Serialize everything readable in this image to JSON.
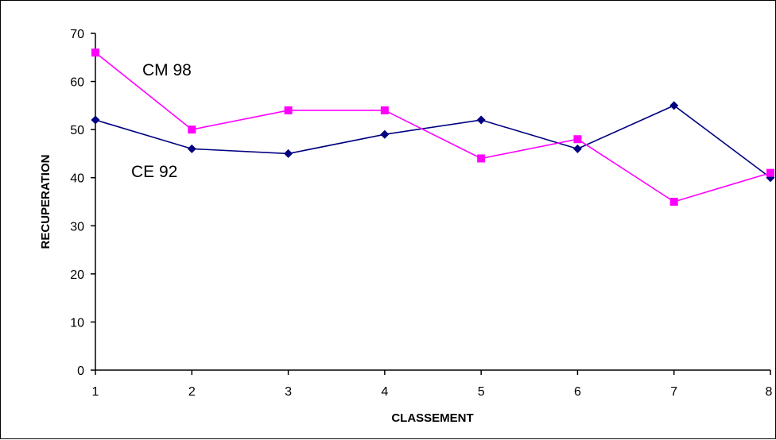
{
  "chart_data": {
    "type": "line",
    "xlabel": "CLASSEMENT",
    "ylabel": "RECUPERATION",
    "x": [
      1,
      2,
      3,
      4,
      5,
      6,
      7,
      8
    ],
    "ylim": [
      0,
      70
    ],
    "yticks": [
      0,
      10,
      20,
      30,
      40,
      50,
      60,
      70
    ],
    "grid": false,
    "series": [
      {
        "name": "CE 92",
        "color": "#000080",
        "marker": "diamond",
        "values": [
          52,
          46,
          45,
          49,
          52,
          46,
          55,
          40
        ]
      },
      {
        "name": "CM 98",
        "color": "#ff00ff",
        "marker": "square",
        "values": [
          66,
          50,
          54,
          54,
          44,
          48,
          35,
          41
        ]
      }
    ],
    "annotations": [
      {
        "text": "CM 98",
        "series": "CM 98"
      },
      {
        "text": "CE 92",
        "series": "CE 92"
      }
    ]
  }
}
